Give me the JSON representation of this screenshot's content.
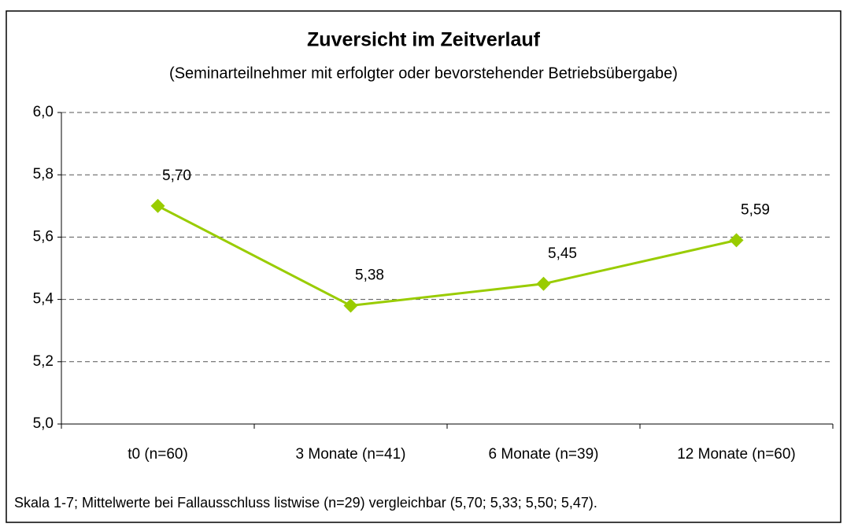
{
  "chart_data": {
    "type": "line",
    "title": "Zuversicht im Zeitverlauf",
    "subtitle": "(Seminarteilnehmer mit erfolgter oder bevorstehender Betriebsübergabe)",
    "categories": [
      "t0 (n=60)",
      "3 Monate (n=41)",
      "6 Monate (n=39)",
      "12 Monate (n=60)"
    ],
    "series": [
      {
        "name": "Zuversicht",
        "color": "#99cc00",
        "values": [
          5.7,
          5.38,
          5.45,
          5.59
        ],
        "value_labels": [
          "5,70",
          "5,38",
          "5,45",
          "5,59"
        ]
      }
    ],
    "ylim": [
      5.0,
      6.0
    ],
    "yticks": [
      {
        "value": 5.0,
        "label": "5,0"
      },
      {
        "value": 5.2,
        "label": "5,2"
      },
      {
        "value": 5.4,
        "label": "5,4"
      },
      {
        "value": 5.6,
        "label": "5,6"
      },
      {
        "value": 5.8,
        "label": "5,8"
      },
      {
        "value": 6.0,
        "label": "6,0"
      }
    ],
    "grid": true,
    "note": "Skala 1-7; Mittelwerte bei Fallausschluss listwise (n=29) vergleichbar (5,70; 5,33; 5,50; 5,47)."
  }
}
